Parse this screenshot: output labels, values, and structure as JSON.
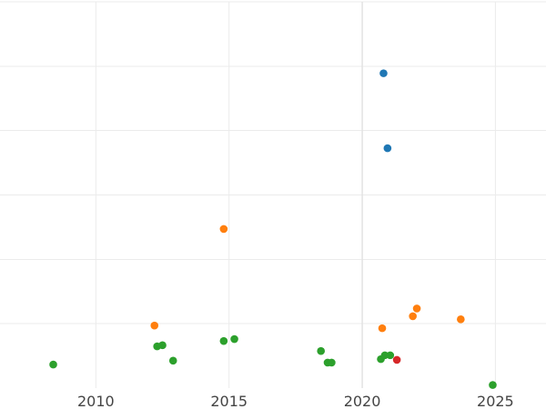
{
  "chart_data": {
    "type": "scatter",
    "title": "",
    "xlabel": "",
    "ylabel": "",
    "xlim": [
      2006.4,
      2026.9
    ],
    "ylim": [
      0.0,
      1.0
    ],
    "grid": true,
    "x_ticks": [
      2010,
      2015,
      2020,
      2025
    ],
    "x_tick_labels": [
      "2010",
      "2015",
      "2020",
      "2025"
    ],
    "y_gridlines": [
      0.167,
      0.333,
      0.5,
      0.667,
      0.833,
      1.0
    ],
    "highlight_x_gridline": 2020,
    "series": [
      {
        "color": "#1f77b4",
        "points": [
          {
            "x": 2020.8,
            "y": 0.815
          },
          {
            "x": 2020.95,
            "y": 0.621
          }
        ]
      },
      {
        "color": "#ff7f0e",
        "points": [
          {
            "x": 2014.8,
            "y": 0.412
          },
          {
            "x": 2012.2,
            "y": 0.162
          },
          {
            "x": 2020.75,
            "y": 0.155
          },
          {
            "x": 2021.9,
            "y": 0.186
          },
          {
            "x": 2022.05,
            "y": 0.206
          },
          {
            "x": 2023.7,
            "y": 0.178
          }
        ]
      },
      {
        "color": "#2ca02c",
        "points": [
          {
            "x": 2008.4,
            "y": 0.061
          },
          {
            "x": 2012.3,
            "y": 0.108
          },
          {
            "x": 2012.5,
            "y": 0.111
          },
          {
            "x": 2012.9,
            "y": 0.071
          },
          {
            "x": 2014.8,
            "y": 0.122
          },
          {
            "x": 2015.2,
            "y": 0.127
          },
          {
            "x": 2018.45,
            "y": 0.096
          },
          {
            "x": 2018.7,
            "y": 0.066
          },
          {
            "x": 2018.85,
            "y": 0.066
          },
          {
            "x": 2020.7,
            "y": 0.075
          },
          {
            "x": 2020.85,
            "y": 0.085
          },
          {
            "x": 2021.05,
            "y": 0.085
          },
          {
            "x": 2024.9,
            "y": 0.008
          }
        ]
      },
      {
        "color": "#d62728",
        "points": [
          {
            "x": 2021.3,
            "y": 0.073
          }
        ]
      }
    ]
  }
}
